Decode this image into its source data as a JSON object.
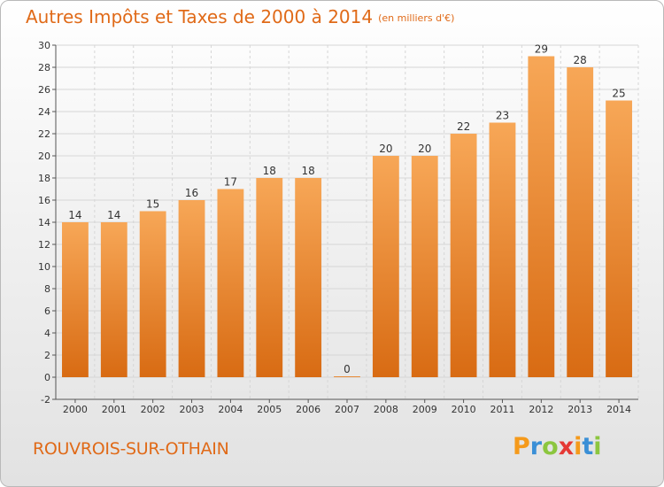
{
  "header": {
    "title": "Autres Impôts et Taxes de 2000 à 2014",
    "unit": "(en milliers d'€)"
  },
  "footer": {
    "commune": "ROUVROIS-SUR-OTHAIN",
    "logo_letters": [
      "P",
      "r",
      "o",
      "x",
      "i",
      "t",
      "i"
    ],
    "logo_colors": [
      "#f59a1b",
      "#3a8fd6",
      "#8cc63f",
      "#e53935",
      "#f59a1b",
      "#3a8fd6",
      "#8cc63f"
    ]
  },
  "chart_data": {
    "type": "bar",
    "title": "Autres Impôts et Taxes de 2000 à 2014",
    "unit": "(en milliers d'€)",
    "categories": [
      "2000",
      "2001",
      "2002",
      "2003",
      "2004",
      "2005",
      "2006",
      "2007",
      "2008",
      "2009",
      "2010",
      "2011",
      "2012",
      "2013",
      "2014"
    ],
    "values": [
      14,
      14,
      15,
      16,
      17,
      18,
      18,
      0,
      20,
      20,
      22,
      23,
      29,
      28,
      25
    ],
    "ylim": [
      -2,
      30
    ],
    "yticks": [
      -2,
      0,
      2,
      4,
      6,
      8,
      10,
      12,
      14,
      16,
      18,
      20,
      22,
      24,
      26,
      28,
      30
    ],
    "grid": true,
    "bar_color_top": "#f7a757",
    "bar_color_bottom": "#d86b13",
    "grid_color": "#d6d6d6"
  }
}
